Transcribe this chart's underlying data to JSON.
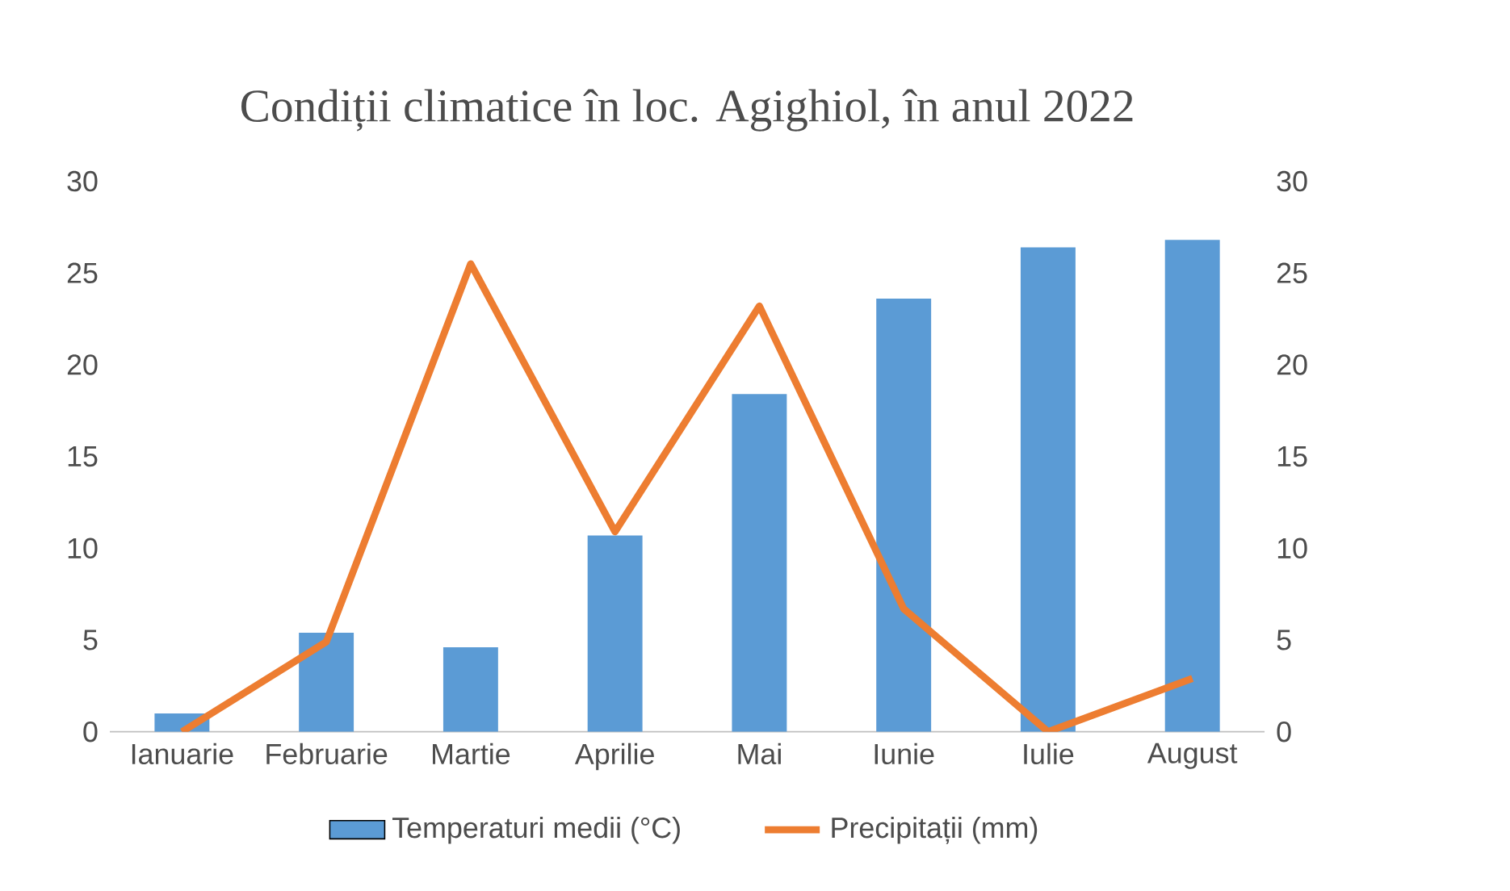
{
  "chart_data": {
    "type": "bar",
    "title": "Condiții climatice în loc. Agighiol, în anul 2022",
    "categories": [
      "Ianuarie",
      "Februarie",
      "Martie",
      "Aprilie",
      "Mai",
      "Iunie",
      "Iulie",
      "August"
    ],
    "series": [
      {
        "name": "Temperaturi medii (°C)",
        "color": "#5b9bd5",
        "values": [
          1,
          5.4,
          4.6,
          10.7,
          18.4,
          23.6,
          26.4,
          26.8
        ]
      },
      {
        "name": "Precipitații (mm)",
        "type": "line",
        "axis": "y2",
        "color": "#ed7d31",
        "values": [
          0,
          4.9,
          25.5,
          10.9,
          23.2,
          6.7,
          0,
          2.9
        ]
      }
    ],
    "ylim": [
      0,
      30
    ],
    "yticks": [
      0,
      5,
      10,
      15,
      20,
      25,
      30
    ],
    "y2lim": [
      0,
      30
    ],
    "y2ticks": [
      0,
      5,
      10,
      15,
      20,
      25,
      30
    ],
    "legend": "bottom",
    "marker": "none"
  }
}
